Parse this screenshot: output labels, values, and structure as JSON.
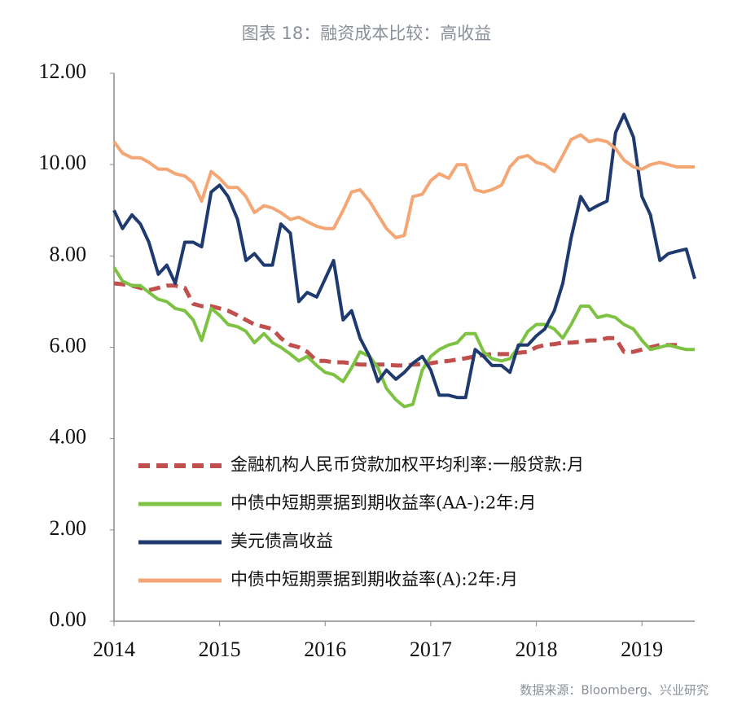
{
  "chart_data": {
    "type": "line",
    "title": "图表 18：融资成本比较：高收益",
    "source": "数据来源：Bloomberg、兴业研究",
    "x": [
      2014,
      2014.08,
      2014.17,
      2014.25,
      2014.33,
      2014.42,
      2014.5,
      2014.58,
      2014.67,
      2014.75,
      2014.83,
      2014.92,
      2015,
      2015.08,
      2015.17,
      2015.25,
      2015.33,
      2015.42,
      2015.5,
      2015.58,
      2015.67,
      2015.75,
      2015.83,
      2015.92,
      2016,
      2016.08,
      2016.17,
      2016.25,
      2016.33,
      2016.42,
      2016.5,
      2016.58,
      2016.67,
      2016.75,
      2016.83,
      2016.92,
      2017,
      2017.08,
      2017.17,
      2017.25,
      2017.33,
      2017.42,
      2017.5,
      2017.58,
      2017.67,
      2017.75,
      2017.83,
      2017.92,
      2018,
      2018.08,
      2018.17,
      2018.25,
      2018.33,
      2018.42,
      2018.5,
      2018.58,
      2018.67,
      2018.75,
      2018.83,
      2018.92,
      2019,
      2019.08,
      2019.17,
      2019.25,
      2019.33,
      2019.42,
      2019.5
    ],
    "series": [
      {
        "name": "金融机构人民币贷款加权平均利率:一般贷款:月",
        "color": "#c0504d",
        "dashed": true,
        "values": [
          7.4,
          7.38,
          7.35,
          7.3,
          7.25,
          7.3,
          7.35,
          7.35,
          7.3,
          6.95,
          6.9,
          6.9,
          6.85,
          6.8,
          6.7,
          6.6,
          6.5,
          6.45,
          6.4,
          6.2,
          6.05,
          6.0,
          5.9,
          5.7,
          5.7,
          5.67,
          5.67,
          5.65,
          5.62,
          5.62,
          5.62,
          5.62,
          5.6,
          5.6,
          5.62,
          5.63,
          5.65,
          5.68,
          5.7,
          5.73,
          5.76,
          5.8,
          5.83,
          5.85,
          5.85,
          5.85,
          5.88,
          5.9,
          6.0,
          6.05,
          6.07,
          6.1,
          6.1,
          6.12,
          6.15,
          6.15,
          6.2,
          6.2,
          5.9,
          5.9,
          5.95,
          6.0,
          6.05,
          6.05,
          6.05,
          null,
          null
        ]
      },
      {
        "name": "中债中短期票据到期收益率(AA-):2年:月",
        "color": "#7dc242",
        "values": [
          7.75,
          7.45,
          7.35,
          7.35,
          7.2,
          7.05,
          7.0,
          6.85,
          6.8,
          6.6,
          6.15,
          6.85,
          6.7,
          6.5,
          6.45,
          6.35,
          6.1,
          6.3,
          6.1,
          6.0,
          5.85,
          5.7,
          5.8,
          5.6,
          5.45,
          5.4,
          5.25,
          5.55,
          5.9,
          5.8,
          5.55,
          5.1,
          4.85,
          4.7,
          4.75,
          5.5,
          5.8,
          5.95,
          6.05,
          6.1,
          6.3,
          6.3,
          5.9,
          5.75,
          5.7,
          5.75,
          6.0,
          6.35,
          6.5,
          6.5,
          6.4,
          6.2,
          6.5,
          6.9,
          6.9,
          6.65,
          6.7,
          6.65,
          6.5,
          6.4,
          6.15,
          5.95,
          6.0,
          6.05,
          6.0,
          5.95,
          5.95
        ]
      },
      {
        "name": "美元债高收益",
        "color": "#1f3a6e",
        "values": [
          9.0,
          8.6,
          8.9,
          8.7,
          8.3,
          7.6,
          7.8,
          7.4,
          8.3,
          8.3,
          8.2,
          9.4,
          9.55,
          9.3,
          8.8,
          7.9,
          8.05,
          7.8,
          7.8,
          8.7,
          8.5,
          7.0,
          7.2,
          7.1,
          7.5,
          7.9,
          6.6,
          6.8,
          6.2,
          5.8,
          5.25,
          5.5,
          5.3,
          5.45,
          5.65,
          5.8,
          5.5,
          4.95,
          4.95,
          4.9,
          4.9,
          5.95,
          5.8,
          5.6,
          5.6,
          5.45,
          6.05,
          6.05,
          6.25,
          6.4,
          6.8,
          7.4,
          8.4,
          9.3,
          9.0,
          9.1,
          9.2,
          10.7,
          11.1,
          10.6,
          9.3,
          8.9,
          7.9,
          8.05,
          8.1,
          8.15,
          7.5
        ]
      },
      {
        "name": "中债中短期票据到期收益率(A):2年:月",
        "color": "#f4a675",
        "values": [
          10.5,
          10.25,
          10.15,
          10.15,
          10.05,
          9.9,
          9.9,
          9.8,
          9.75,
          9.6,
          9.2,
          9.85,
          9.7,
          9.5,
          9.5,
          9.3,
          8.95,
          9.1,
          9.05,
          8.95,
          8.8,
          8.85,
          8.75,
          8.65,
          8.6,
          8.6,
          9.0,
          9.4,
          9.45,
          9.2,
          8.9,
          8.6,
          8.4,
          8.45,
          9.3,
          9.35,
          9.65,
          9.8,
          9.7,
          10.0,
          10.0,
          9.45,
          9.4,
          9.45,
          9.55,
          9.95,
          10.15,
          10.2,
          10.05,
          10.0,
          9.85,
          10.2,
          10.55,
          10.65,
          10.5,
          10.55,
          10.5,
          10.35,
          10.1,
          9.95,
          9.9,
          10.0,
          10.05,
          10.0,
          9.95,
          9.95,
          9.95
        ]
      }
    ],
    "xlim": [
      2014,
      2019.5
    ],
    "xticks": [
      2014,
      2015,
      2016,
      2017,
      2018,
      2019
    ],
    "ylim": [
      0,
      12
    ],
    "yticks": [
      {
        "value": 0,
        "label": "0.00"
      },
      {
        "value": 2,
        "label": "2.00"
      },
      {
        "value": 4,
        "label": "4.00"
      },
      {
        "value": 6,
        "label": "6.00"
      },
      {
        "value": 8,
        "label": "8.00"
      },
      {
        "value": 10,
        "label": "10.00"
      },
      {
        "value": 12,
        "label": "12.00"
      }
    ],
    "grid": false
  }
}
